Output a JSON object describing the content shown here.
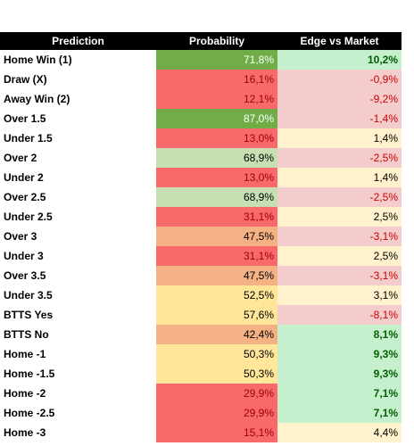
{
  "table": {
    "header": [
      "Prediction",
      "Probability",
      "Edge vs Market"
    ],
    "rows": [
      {
        "prediction": "Home Win (1)",
        "probability": "71,8%",
        "probability_fill": "#70ad47",
        "probability_color": "#ffffff",
        "edge": "10,2%",
        "edge_fill": "#c6efce",
        "edge_color": "#006100",
        "edge_bold": true
      },
      {
        "prediction": "Draw (X)",
        "probability": "16,1%",
        "probability_fill": "#f8696b",
        "probability_color": "#9c0006",
        "edge": "-0,9%",
        "edge_fill": "#f4cccc",
        "edge_color": "#cc0000",
        "edge_bold": false
      },
      {
        "prediction": "Away Win (2)",
        "probability": "12,1%",
        "probability_fill": "#f8696b",
        "probability_color": "#9c0006",
        "edge": "-9,2%",
        "edge_fill": "#f4cccc",
        "edge_color": "#cc0000",
        "edge_bold": false
      },
      {
        "prediction": "Over 1.5",
        "probability": "87,0%",
        "probability_fill": "#70ad47",
        "probability_color": "#ffffff",
        "edge": "-1,4%",
        "edge_fill": "#f4cccc",
        "edge_color": "#cc0000",
        "edge_bold": false
      },
      {
        "prediction": "Under 1.5",
        "probability": "13,0%",
        "probability_fill": "#f8696b",
        "probability_color": "#9c0006",
        "edge": "1,4%",
        "edge_fill": "#fff2cc",
        "edge_color": "#000000",
        "edge_bold": false
      },
      {
        "prediction": "Over 2",
        "probability": "68,9%",
        "probability_fill": "#c6e0b4",
        "probability_color": "#000000",
        "edge": "-2,5%",
        "edge_fill": "#f4cccc",
        "edge_color": "#cc0000",
        "edge_bold": false
      },
      {
        "prediction": "Under 2",
        "probability": "13,0%",
        "probability_fill": "#f8696b",
        "probability_color": "#9c0006",
        "edge": "1,4%",
        "edge_fill": "#fff2cc",
        "edge_color": "#000000",
        "edge_bold": false
      },
      {
        "prediction": "Over 2.5",
        "probability": "68,9%",
        "probability_fill": "#c6e0b4",
        "probability_color": "#000000",
        "edge": "-2,5%",
        "edge_fill": "#f4cccc",
        "edge_color": "#cc0000",
        "edge_bold": false
      },
      {
        "prediction": "Under 2.5",
        "probability": "31,1%",
        "probability_fill": "#f8696b",
        "probability_color": "#9c0006",
        "edge": "2,5%",
        "edge_fill": "#fff2cc",
        "edge_color": "#000000",
        "edge_bold": false
      },
      {
        "prediction": "Over 3",
        "probability": "47,5%",
        "probability_fill": "#f4b183",
        "probability_color": "#000000",
        "edge": "-3,1%",
        "edge_fill": "#f4cccc",
        "edge_color": "#cc0000",
        "edge_bold": false
      },
      {
        "prediction": "Under 3",
        "probability": "31,1%",
        "probability_fill": "#f8696b",
        "probability_color": "#9c0006",
        "edge": "2,5%",
        "edge_fill": "#fff2cc",
        "edge_color": "#000000",
        "edge_bold": false
      },
      {
        "prediction": "Over 3.5",
        "probability": "47,5%",
        "probability_fill": "#f4b183",
        "probability_color": "#000000",
        "edge": "-3,1%",
        "edge_fill": "#f4cccc",
        "edge_color": "#cc0000",
        "edge_bold": false
      },
      {
        "prediction": "Under 3.5",
        "probability": "52,5%",
        "probability_fill": "#ffe699",
        "probability_color": "#000000",
        "edge": "3,1%",
        "edge_fill": "#fff2cc",
        "edge_color": "#000000",
        "edge_bold": false
      },
      {
        "prediction": "BTTS Yes",
        "probability": "57,6%",
        "probability_fill": "#ffe699",
        "probability_color": "#000000",
        "edge": "-8,1%",
        "edge_fill": "#f4cccc",
        "edge_color": "#cc0000",
        "edge_bold": false
      },
      {
        "prediction": "BTTS No",
        "probability": "42,4%",
        "probability_fill": "#f4b183",
        "probability_color": "#000000",
        "edge": "8,1%",
        "edge_fill": "#c6efce",
        "edge_color": "#006100",
        "edge_bold": true
      },
      {
        "prediction": "Home -1",
        "probability": "50,3%",
        "probability_fill": "#ffe699",
        "probability_color": "#000000",
        "edge": "9,3%",
        "edge_fill": "#c6efce",
        "edge_color": "#006100",
        "edge_bold": true
      },
      {
        "prediction": "Home -1.5",
        "probability": "50,3%",
        "probability_fill": "#ffe699",
        "probability_color": "#000000",
        "edge": "9,3%",
        "edge_fill": "#c6efce",
        "edge_color": "#006100",
        "edge_bold": true
      },
      {
        "prediction": "Home -2",
        "probability": "29,9%",
        "probability_fill": "#f8696b",
        "probability_color": "#9c0006",
        "edge": "7,1%",
        "edge_fill": "#c6efce",
        "edge_color": "#006100",
        "edge_bold": true
      },
      {
        "prediction": "Home -2.5",
        "probability": "29,9%",
        "probability_fill": "#f8696b",
        "probability_color": "#9c0006",
        "edge": "7,1%",
        "edge_fill": "#c6efce",
        "edge_color": "#006100",
        "edge_bold": true
      },
      {
        "prediction": "Home -3",
        "probability": "15,1%",
        "probability_fill": "#f8696b",
        "probability_color": "#9c0006",
        "edge": "4,4%",
        "edge_fill": "#fff2cc",
        "edge_color": "#000000",
        "edge_bold": false
      }
    ]
  }
}
